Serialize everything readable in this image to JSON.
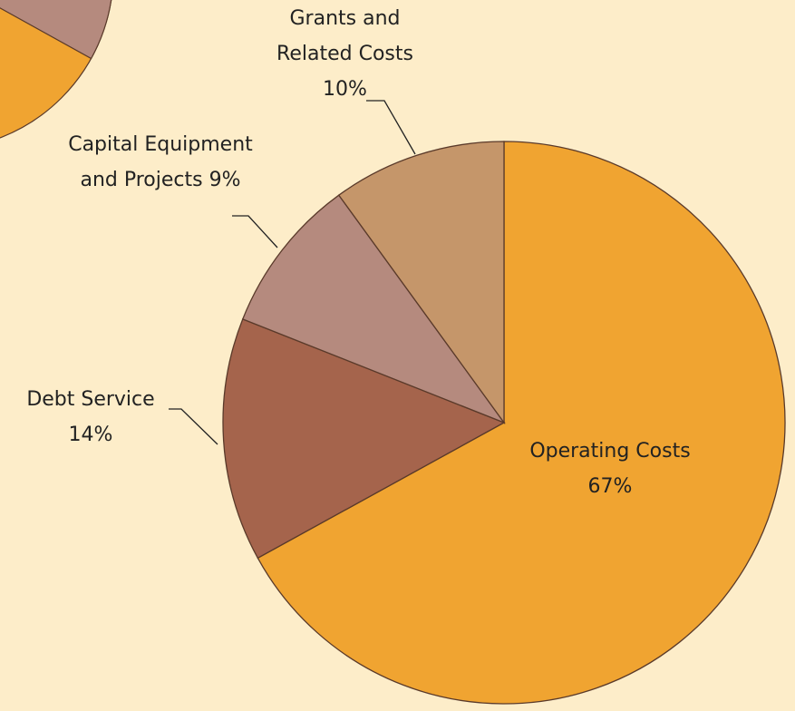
{
  "chart_data": {
    "type": "pie",
    "categories": [
      "Operating Costs",
      "Debt Service",
      "Capital Equipment and Projects",
      "Grants and Related Costs"
    ],
    "values": [
      67,
      14,
      9,
      10
    ],
    "value_labels": [
      "67%",
      "14%",
      "9%",
      "10%"
    ],
    "colors": [
      "#f0a431",
      "#a5644c",
      "#b58a7e",
      "#c5966a"
    ],
    "start": "top",
    "direction": "clockwise"
  }
}
